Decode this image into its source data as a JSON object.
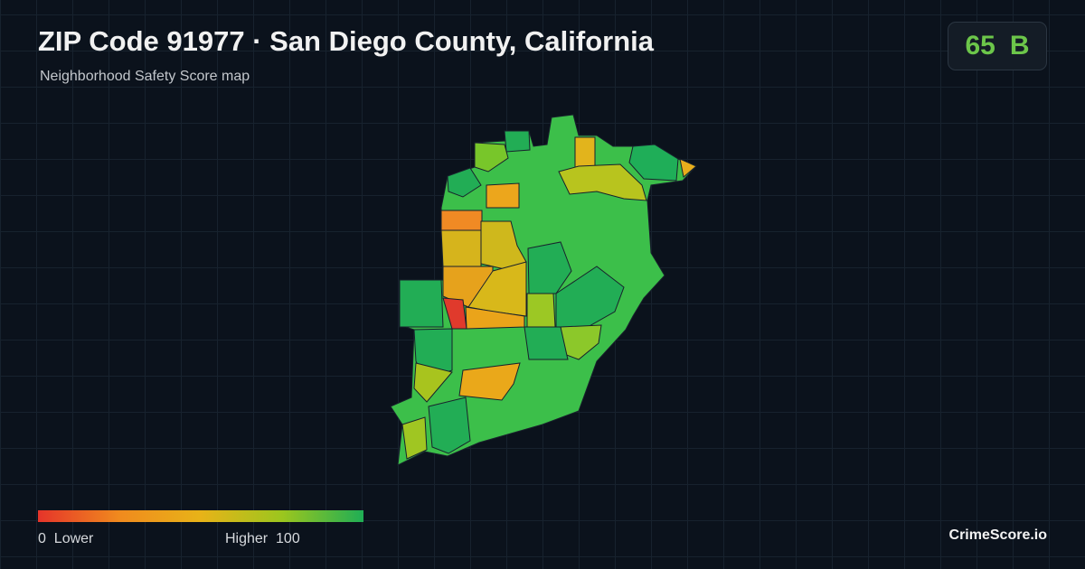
{
  "header": {
    "title": "ZIP Code 91977 · San Diego County, California",
    "subtitle": "Neighborhood Safety Score map"
  },
  "score": {
    "value": 65,
    "grade": "B"
  },
  "legend": {
    "min": 0,
    "min_label": "Lower",
    "max_label": "Higher",
    "max": 100,
    "colors": [
      "#e5342a",
      "#f08a1e",
      "#e8b318",
      "#9cc61e",
      "#1fae55"
    ]
  },
  "brand": "CrimeScore.io"
}
